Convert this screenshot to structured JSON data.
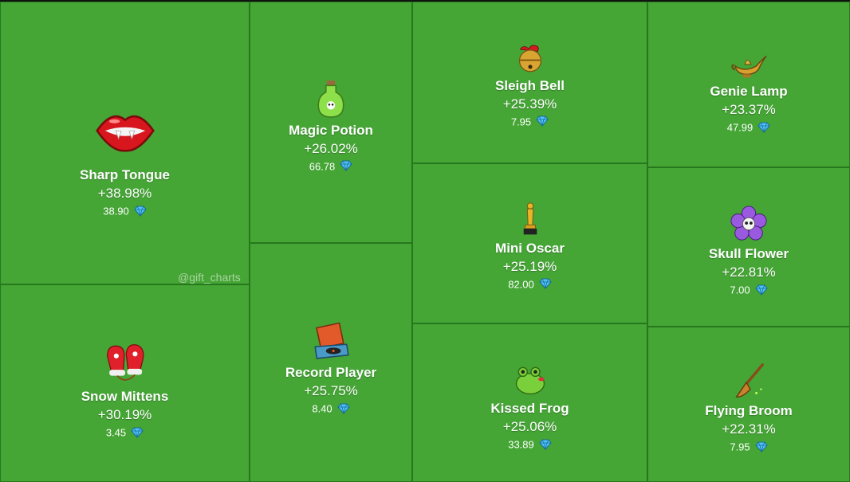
{
  "watermark": "@gift_charts",
  "colors": {
    "tile_background": "#45a535",
    "tile_border": "#26781d",
    "text": "#ffffff",
    "diamond": "#4fc3f7"
  },
  "chart_data": {
    "type": "treemap",
    "value_label": "% change",
    "items": [
      {
        "name": "Sharp Tongue",
        "change_pct": 38.98,
        "change_text": "+38.98%",
        "price": 38.9,
        "price_text": "38.90",
        "icon": "red-lips-icon"
      },
      {
        "name": "Snow Mittens",
        "change_pct": 30.19,
        "change_text": "+30.19%",
        "price": 3.45,
        "price_text": "3.45",
        "icon": "red-mittens-icon"
      },
      {
        "name": "Magic Potion",
        "change_pct": 26.02,
        "change_text": "+26.02%",
        "price": 66.78,
        "price_text": "66.78",
        "icon": "green-potion-icon"
      },
      {
        "name": "Record Player",
        "change_pct": 25.75,
        "change_text": "+25.75%",
        "price": 8.4,
        "price_text": "8.40",
        "icon": "record-player-icon"
      },
      {
        "name": "Sleigh Bell",
        "change_pct": 25.39,
        "change_text": "+25.39%",
        "price": 7.95,
        "price_text": "7.95",
        "icon": "sleigh-bell-icon"
      },
      {
        "name": "Mini Oscar",
        "change_pct": 25.19,
        "change_text": "+25.19%",
        "price": 82.0,
        "price_text": "82.00",
        "icon": "oscar-statuette-icon"
      },
      {
        "name": "Kissed Frog",
        "change_pct": 25.06,
        "change_text": "+25.06%",
        "price": 33.89,
        "price_text": "33.89",
        "icon": "kissed-frog-icon"
      },
      {
        "name": "Genie Lamp",
        "change_pct": 23.37,
        "change_text": "+23.37%",
        "price": 47.99,
        "price_text": "47.99",
        "icon": "genie-lamp-icon"
      },
      {
        "name": "Skull Flower",
        "change_pct": 22.81,
        "change_text": "+22.81%",
        "price": 7.0,
        "price_text": "7.00",
        "icon": "skull-flower-icon"
      },
      {
        "name": "Flying Broom",
        "change_pct": 22.31,
        "change_text": "+22.31%",
        "price": 7.95,
        "price_text": "7.95",
        "icon": "flying-broom-icon"
      }
    ]
  }
}
